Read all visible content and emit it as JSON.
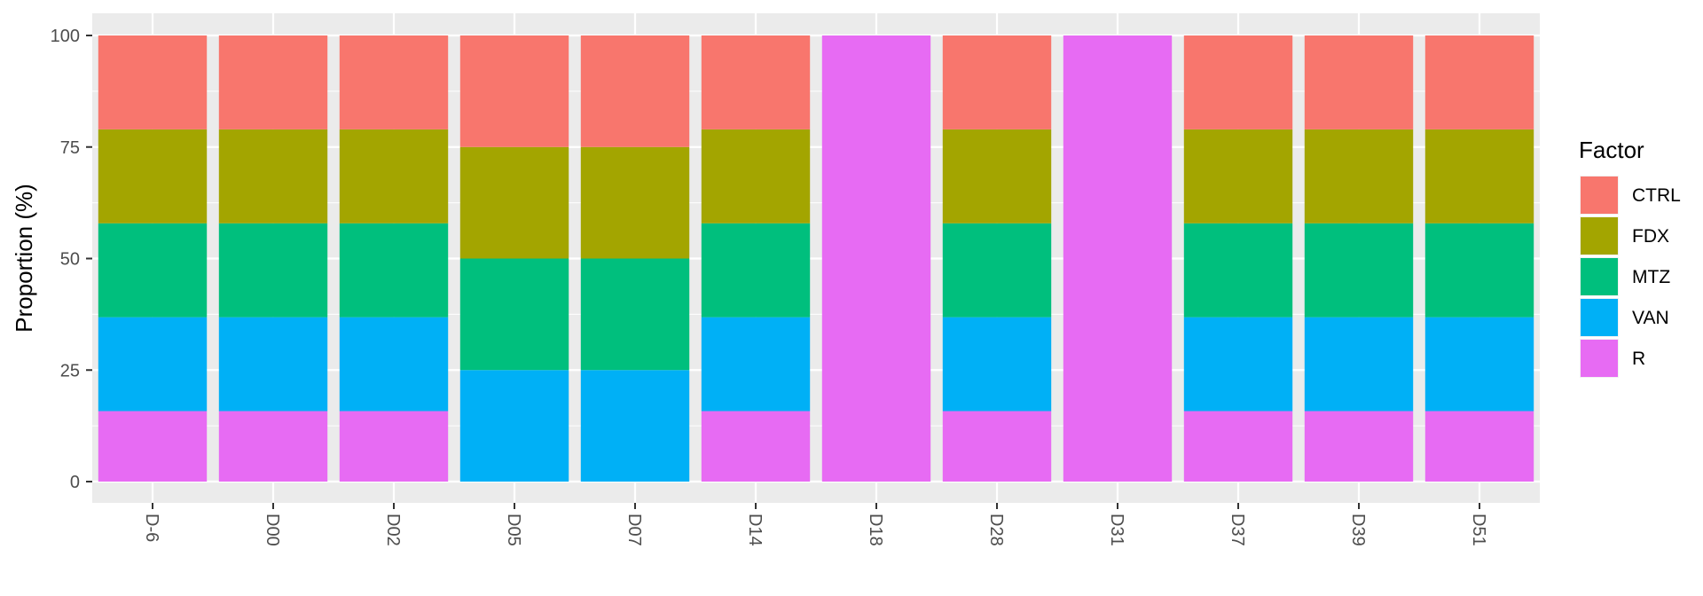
{
  "chart_data": {
    "type": "bar",
    "stacked": true,
    "ylabel": "Proportion (%)",
    "xlabel": "",
    "ylim": [
      0,
      100
    ],
    "yticks": [
      0,
      25,
      50,
      75,
      100
    ],
    "grid": true,
    "legend_position": "right",
    "legend_title": "Factor",
    "categories": [
      "D-6",
      "D00",
      "D02",
      "D05",
      "D07",
      "D14",
      "D18",
      "D28",
      "D31",
      "D37",
      "D39",
      "D51"
    ],
    "series": [
      {
        "name": "R",
        "color": "#E76BF3",
        "values": [
          15.8,
          15.8,
          15.8,
          0,
          0,
          15.8,
          100,
          15.8,
          100,
          15.8,
          15.8,
          15.8
        ]
      },
      {
        "name": "VAN",
        "color": "#00B0F6",
        "values": [
          21.05,
          21.05,
          21.05,
          25,
          25,
          21.05,
          0,
          21.05,
          0,
          21.05,
          21.05,
          21.05
        ]
      },
      {
        "name": "MTZ",
        "color": "#00BF7D",
        "values": [
          21.05,
          21.05,
          21.05,
          25,
          25,
          21.05,
          0,
          21.05,
          0,
          21.05,
          21.05,
          21.05
        ]
      },
      {
        "name": "FDX",
        "color": "#A3A500",
        "values": [
          21.05,
          21.05,
          21.05,
          25,
          25,
          21.05,
          0,
          21.05,
          0,
          21.05,
          21.05,
          21.05
        ]
      },
      {
        "name": "CTRL",
        "color": "#F8766D",
        "values": [
          21.05,
          21.05,
          21.05,
          25,
          25,
          21.05,
          0,
          21.05,
          0,
          21.05,
          21.05,
          21.05
        ]
      }
    ],
    "legend_order": [
      "CTRL",
      "FDX",
      "MTZ",
      "VAN",
      "R"
    ]
  }
}
